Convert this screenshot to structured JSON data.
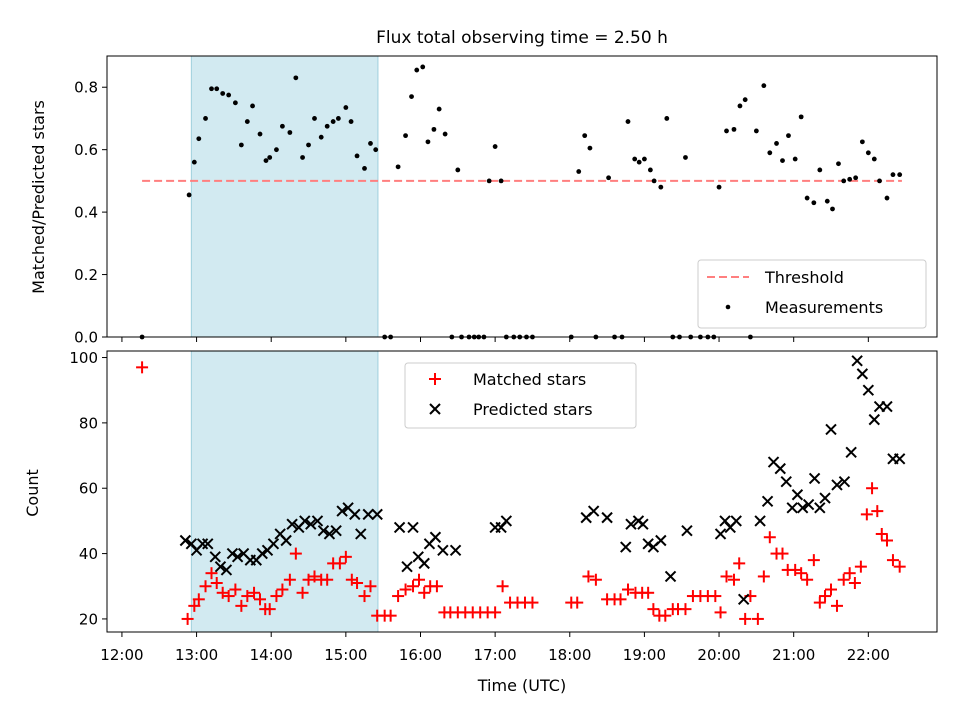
{
  "figure": {
    "title": "Flux total observing time = 2.50 h",
    "xlabel": "Time (UTC)",
    "x_ticks": [
      "12:00",
      "13:00",
      "14:00",
      "15:00",
      "16:00",
      "17:00",
      "18:00",
      "19:00",
      "20:00",
      "21:00",
      "22:00"
    ]
  },
  "chart_data": [
    {
      "type": "scatter",
      "panel": "top",
      "title": "Flux total observing time = 2.50 h",
      "xlabel": "",
      "ylabel": "Matched/Predicted stars",
      "x_unit": "hours UTC",
      "xlim": [
        11.8,
        22.92
      ],
      "ylim": [
        0,
        0.9
      ],
      "y_ticks": [
        "0.0",
        "0.2",
        "0.4",
        "0.6",
        "0.8"
      ],
      "y_tick_values": [
        0,
        0.2,
        0.4,
        0.6,
        0.8
      ],
      "shaded_span": {
        "from": 12.93,
        "to": 15.43,
        "color": "#add8e6"
      },
      "legend": {
        "position": "lower-right",
        "entries": [
          "Threshold",
          "Measurements"
        ]
      },
      "series": [
        {
          "name": "Threshold",
          "kind": "dashed-line",
          "color": "#ff7f7f",
          "x": [
            12.27,
            22.45
          ],
          "y": [
            0.5,
            0.5
          ]
        },
        {
          "name": "Measurements",
          "kind": "dot",
          "color": "#000000",
          "x": [
            12.27,
            12.9,
            12.97,
            13.03,
            13.12,
            13.2,
            13.27,
            13.35,
            13.43,
            13.52,
            13.6,
            13.68,
            13.75,
            13.85,
            13.93,
            13.98,
            14.07,
            14.15,
            14.25,
            14.33,
            14.42,
            14.5,
            14.58,
            14.67,
            14.75,
            14.83,
            14.9,
            15.0,
            15.07,
            15.15,
            15.25,
            15.33,
            15.4,
            15.52,
            15.6,
            15.7,
            15.8,
            15.88,
            15.95,
            16.03,
            16.1,
            16.18,
            16.25,
            16.33,
            16.42,
            16.5,
            16.55,
            16.65,
            16.72,
            16.78,
            16.85,
            16.92,
            17.0,
            17.08,
            17.15,
            17.25,
            17.33,
            17.42,
            17.5,
            18.02,
            18.12,
            18.2,
            18.27,
            18.35,
            18.52,
            18.6,
            18.7,
            18.78,
            18.87,
            18.93,
            19.0,
            19.08,
            19.13,
            19.22,
            19.3,
            19.38,
            19.47,
            19.55,
            19.62,
            19.75,
            19.85,
            19.93,
            20.0,
            20.1,
            20.2,
            20.28,
            20.35,
            20.42,
            20.5,
            20.6,
            20.68,
            20.77,
            20.85,
            20.93,
            21.02,
            21.1,
            21.18,
            21.27,
            21.35,
            21.45,
            21.52,
            21.6,
            21.67,
            21.75,
            21.83,
            21.92,
            22.0,
            22.08,
            22.15,
            22.25,
            22.33,
            22.42
          ],
          "y": [
            0.0,
            0.455,
            0.56,
            0.635,
            0.7,
            0.795,
            0.795,
            0.78,
            0.775,
            0.75,
            0.615,
            0.69,
            0.74,
            0.65,
            0.565,
            0.575,
            0.6,
            0.675,
            0.655,
            0.83,
            0.575,
            0.615,
            0.7,
            0.64,
            0.675,
            0.69,
            0.7,
            0.735,
            0.69,
            0.58,
            0.54,
            0.62,
            0.6,
            0.0,
            0.0,
            0.545,
            0.645,
            0.77,
            0.855,
            0.865,
            0.625,
            0.665,
            0.73,
            0.65,
            0.0,
            0.535,
            0.0,
            0.0,
            0.0,
            0.0,
            0.0,
            0.5,
            0.61,
            0.5,
            0.0,
            0.0,
            0.0,
            0.0,
            0.0,
            0.0,
            0.53,
            0.645,
            0.605,
            0.0,
            0.51,
            0.0,
            0.0,
            0.69,
            0.57,
            0.56,
            0.57,
            0.535,
            0.5,
            0.48,
            0.7,
            0.0,
            0.0,
            0.575,
            0.0,
            0.0,
            0.0,
            0.0,
            0.48,
            0.66,
            0.665,
            0.74,
            0.76,
            0.0,
            0.66,
            0.805,
            0.59,
            0.62,
            0.565,
            0.645,
            0.57,
            0.705,
            0.445,
            0.43,
            0.535,
            0.435,
            0.41,
            0.555,
            0.5,
            0.505,
            0.51,
            0.625,
            0.59,
            0.57,
            0.5,
            0.445,
            0.52,
            0.52
          ]
        }
      ]
    },
    {
      "type": "scatter",
      "panel": "bottom",
      "title": "",
      "xlabel": "Time (UTC)",
      "ylabel": "Count",
      "x_unit": "hours UTC",
      "xlim": [
        11.8,
        22.92
      ],
      "ylim": [
        16,
        102
      ],
      "y_ticks": [
        "20",
        "40",
        "60",
        "80",
        "100"
      ],
      "y_tick_values": [
        20,
        40,
        60,
        80,
        100
      ],
      "shaded_span": {
        "from": 12.93,
        "to": 15.43,
        "color": "#add8e6"
      },
      "legend": {
        "position": "upper-center",
        "entries": [
          "Matched stars",
          "Predicted stars"
        ]
      },
      "series": [
        {
          "name": "Matched stars",
          "marker": "+",
          "color": "#ff0000",
          "x": [
            12.27,
            12.88,
            12.97,
            13.03,
            13.12,
            13.2,
            13.27,
            13.35,
            13.43,
            13.52,
            13.6,
            13.68,
            13.77,
            13.85,
            13.92,
            13.98,
            14.07,
            14.15,
            14.25,
            14.33,
            14.42,
            14.5,
            14.58,
            14.67,
            14.75,
            14.83,
            14.92,
            15.0,
            15.08,
            15.15,
            15.25,
            15.33,
            15.42,
            15.52,
            15.6,
            15.7,
            15.8,
            15.9,
            15.98,
            16.05,
            16.13,
            16.22,
            16.32,
            16.4,
            16.5,
            16.6,
            16.7,
            16.8,
            16.9,
            17.0,
            17.1,
            17.2,
            17.3,
            17.4,
            17.5,
            18.02,
            18.1,
            18.25,
            18.35,
            18.5,
            18.6,
            18.68,
            18.78,
            18.88,
            18.97,
            19.05,
            19.12,
            19.2,
            19.28,
            19.38,
            19.45,
            19.55,
            19.65,
            19.75,
            19.85,
            19.95,
            20.02,
            20.1,
            20.2,
            20.27,
            20.35,
            20.42,
            20.52,
            20.6,
            20.68,
            20.77,
            20.85,
            20.92,
            21.02,
            21.1,
            21.18,
            21.27,
            21.35,
            21.42,
            21.5,
            21.58,
            21.67,
            21.75,
            21.82,
            21.9,
            21.98,
            22.05,
            22.12,
            22.18,
            22.25,
            22.33,
            22.42
          ],
          "y": [
            97,
            20,
            24,
            26,
            30,
            34,
            31,
            28,
            27,
            29,
            24,
            27,
            28,
            26,
            23,
            23,
            27,
            29,
            32,
            40,
            28,
            32,
            33,
            32,
            32,
            37,
            37,
            39,
            32,
            31,
            27,
            30,
            21,
            21,
            21,
            27,
            29,
            30,
            32,
            28,
            30,
            30,
            22,
            22,
            22,
            22,
            22,
            22,
            22,
            22,
            30,
            25,
            25,
            25,
            25,
            25,
            25,
            33,
            32,
            26,
            26,
            26,
            29,
            28,
            28,
            28,
            23,
            21,
            21,
            23,
            23,
            23,
            27,
            27,
            27,
            27,
            22,
            33,
            32,
            37,
            20,
            27,
            20,
            33,
            45,
            40,
            40,
            35,
            35,
            34,
            32,
            38,
            25,
            27,
            29,
            24,
            32,
            34,
            31,
            36,
            52,
            60,
            53,
            46,
            44,
            38,
            36
          ]
        },
        {
          "name": "Predicted stars",
          "marker": "x",
          "color": "#000000",
          "x": [
            12.85,
            12.93,
            13.0,
            13.08,
            13.15,
            13.25,
            13.32,
            13.4,
            13.48,
            13.55,
            13.63,
            13.72,
            13.8,
            13.88,
            13.95,
            14.03,
            14.12,
            14.2,
            14.28,
            14.37,
            14.45,
            14.53,
            14.62,
            14.7,
            14.78,
            14.87,
            14.95,
            15.03,
            15.12,
            15.2,
            15.3,
            15.42,
            15.72,
            15.82,
            15.9,
            15.97,
            16.05,
            16.12,
            16.2,
            16.3,
            16.47,
            17.0,
            17.08,
            17.15,
            18.22,
            18.32,
            18.5,
            18.75,
            18.82,
            18.92,
            18.98,
            19.05,
            19.12,
            19.22,
            19.35,
            19.57,
            20.02,
            20.08,
            20.15,
            20.23,
            20.33,
            20.55,
            20.65,
            20.73,
            20.82,
            20.9,
            20.98,
            21.05,
            21.12,
            21.2,
            21.28,
            21.35,
            21.42,
            21.5,
            21.58,
            21.68,
            21.77,
            21.85,
            21.92,
            22.0,
            22.08,
            22.15,
            22.25,
            22.33,
            22.42
          ],
          "y": [
            44,
            43,
            41,
            43,
            43,
            39,
            36,
            35,
            40,
            39,
            40,
            38,
            38,
            40,
            41,
            43,
            46,
            44,
            49,
            48,
            50,
            49,
            50,
            47,
            46,
            47,
            53,
            54,
            52,
            46,
            52,
            52,
            48,
            36,
            48,
            39,
            37,
            43,
            45,
            41,
            41,
            48,
            48,
            50,
            51,
            53,
            51,
            42,
            49,
            50,
            49,
            43,
            42,
            44,
            33,
            47,
            46,
            50,
            48,
            50,
            26,
            50,
            56,
            68,
            66,
            62,
            54,
            58,
            54,
            55,
            63,
            54,
            57,
            78,
            61,
            62,
            71,
            99,
            95,
            90,
            81,
            85,
            85,
            69,
            69
          ]
        }
      ]
    }
  ]
}
